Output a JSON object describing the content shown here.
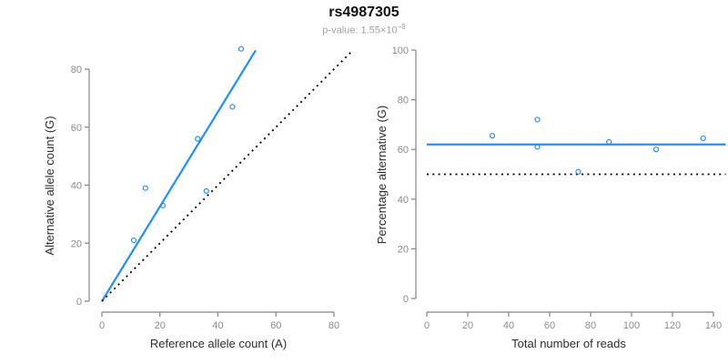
{
  "header": {
    "title": "rs4987305",
    "subtitle_prefix": "p-value: 1.55×10",
    "subtitle_exponent": "−8"
  },
  "colors": {
    "accent_blue": "#1E90FF",
    "dotted_line_black": "#000000",
    "axis_gray": "#858585",
    "tick_label_gray": "#8c8c8c",
    "axis_title_dark": "#2e2e2e",
    "subtitle_gray": "#a3a3a3"
  },
  "chart_data": [
    {
      "type": "scatter",
      "panel": "allele-counts",
      "title": "",
      "xlabel": "Reference allele count (A)",
      "ylabel": "Alternative allele count (G)",
      "xlim": [
        0,
        87
      ],
      "ylim": [
        0,
        87
      ],
      "xticks": [
        0,
        20,
        40,
        60,
        80
      ],
      "yticks": [
        0,
        20,
        40,
        60,
        80
      ],
      "grid": false,
      "legend": "none",
      "points": [
        [
          11,
          21
        ],
        [
          15,
          39
        ],
        [
          21,
          33
        ],
        [
          33,
          56
        ],
        [
          36,
          38
        ],
        [
          45,
          67
        ],
        [
          48,
          87
        ]
      ],
      "lines": [
        {
          "name": "fit-line",
          "style": "solid",
          "color": "#1E90FF",
          "x": [
            0,
            53
          ],
          "y": [
            0,
            86.5
          ]
        },
        {
          "name": "identity-line",
          "style": "dotted",
          "color": "#000000",
          "x": [
            0,
            86.3
          ],
          "y": [
            0,
            86.3
          ]
        }
      ]
    },
    {
      "type": "scatter",
      "panel": "percentage-by-reads",
      "title": "",
      "xlabel": "Total number of reads",
      "ylabel": "Percentage alternative (G)",
      "xlim": [
        0,
        146
      ],
      "ylim": [
        0,
        100
      ],
      "xticks": [
        0,
        20,
        40,
        60,
        80,
        100,
        120,
        140
      ],
      "yticks": [
        0,
        20,
        40,
        60,
        80,
        100
      ],
      "grid": false,
      "legend": "none",
      "points": [
        [
          32,
          65.5
        ],
        [
          54,
          72
        ],
        [
          54,
          61
        ],
        [
          74,
          51
        ],
        [
          89,
          63
        ],
        [
          112,
          60
        ],
        [
          135,
          64.5
        ]
      ],
      "lines": [
        {
          "name": "mean-percentage-line",
          "style": "solid",
          "color": "#1E90FF",
          "x": [
            0,
            146
          ],
          "y": [
            62,
            62
          ]
        },
        {
          "name": "fifty-percent-line",
          "style": "dotted",
          "color": "#000000",
          "x": [
            0,
            146
          ],
          "y": [
            50,
            50
          ]
        }
      ]
    }
  ]
}
